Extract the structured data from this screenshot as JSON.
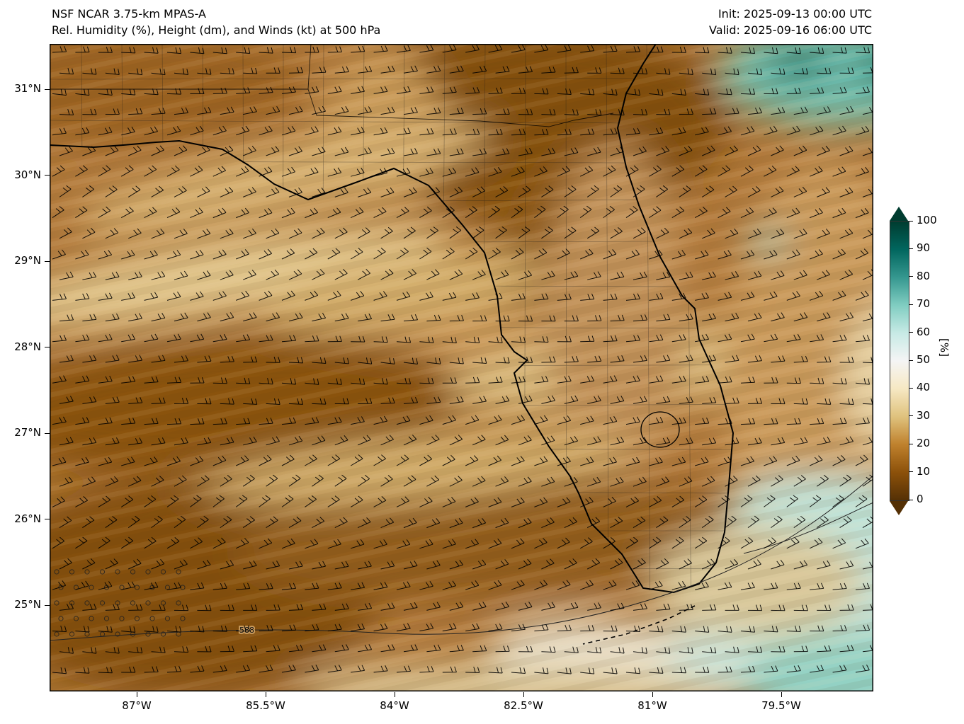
{
  "header": {
    "title_line1": "NSF NCAR 3.75-km MPAS-A",
    "title_line2": "Rel. Humidity (%), Height (dm), and Winds (kt) at 500 hPa",
    "init_label": "Init: 2025-09-13 00:00 UTC",
    "valid_label": "Valid: 2025-09-16 06:00 UTC"
  },
  "axes": {
    "y_ticks": [
      "31°N",
      "30°N",
      "29°N",
      "28°N",
      "27°N",
      "26°N",
      "25°N"
    ],
    "x_ticks": [
      "87°W",
      "85.5°W",
      "84°W",
      "82.5°W",
      "81°W",
      "79.5°W"
    ]
  },
  "colorbar": {
    "label": "[%]",
    "ticks": [
      100,
      90,
      80,
      70,
      60,
      50,
      40,
      30,
      20,
      10,
      0
    ],
    "stops": [
      {
        "value": 100,
        "color": "#003c30"
      },
      {
        "value": 90,
        "color": "#01665e"
      },
      {
        "value": 80,
        "color": "#35978f"
      },
      {
        "value": 70,
        "color": "#80cdc1"
      },
      {
        "value": 60,
        "color": "#c7eae5"
      },
      {
        "value": 50,
        "color": "#f5f5f5"
      },
      {
        "value": 40,
        "color": "#f6e8c3"
      },
      {
        "value": 30,
        "color": "#dfc27d"
      },
      {
        "value": 20,
        "color": "#bf812d"
      },
      {
        "value": 10,
        "color": "#8c510a"
      },
      {
        "value": 0,
        "color": "#543005"
      }
    ]
  },
  "map": {
    "contour_label": "588"
  },
  "chart_data": {
    "type": "heatmap",
    "model": "NSF NCAR 3.75-km MPAS-A",
    "title": "Rel. Humidity (%), Height (dm), and Winds (kt) at 500 hPa",
    "init": "2025-09-13 00:00 UTC",
    "valid": "2025-09-16 06:00 UTC",
    "variable": "relative humidity",
    "units": "%",
    "level_hPa": 500,
    "x_axis": {
      "label": "longitude",
      "ticks": [
        "87°W",
        "85.5°W",
        "84°W",
        "82.5°W",
        "81°W",
        "79.5°W"
      ],
      "range_degW": [
        88.0,
        78.4
      ]
    },
    "y_axis": {
      "label": "latitude",
      "ticks": [
        "31°N",
        "30°N",
        "29°N",
        "28°N",
        "27°N",
        "26°N",
        "25°N"
      ],
      "range_degN": [
        24.0,
        31.5
      ]
    },
    "colorbar_range": [
      0,
      100
    ],
    "height_contours_dm": [
      588
    ],
    "wind_units": "kt",
    "typical_wind_speed_kt": [
      10,
      20
    ],
    "regions_approx_rh_pct": [
      {
        "region": "most of Gulf of Mexico, Florida peninsula and southeast US (browns)",
        "rh": "5-35"
      },
      {
        "region": "dark brown band north-central Florida / Georgia near 82-83°W, 29.5-31.5°N",
        "rh": "5-15"
      },
      {
        "region": "dark brown southwest Gulf, west of 85°W and south of 26.5°N",
        "rh": "5-15"
      },
      {
        "region": "tan SW-NE oriented streaks across the Gulf",
        "rh": "30-40"
      },
      {
        "region": "northeast corner Atlantic, east of 80°W north of 30.5°N (teal)",
        "rh": "60-85"
      },
      {
        "region": "southeast Atlantic / Florida Straits, east of 80°W south of 26°N (light teal to white)",
        "rh": "45-65"
      },
      {
        "region": "small teal patch near 79.5°W, 29.3°N",
        "rh": "60-70"
      }
    ],
    "stippling": "open-circle stipple region in far southwest corner (west of ~86.5°W, south of ~25.3°N)"
  }
}
